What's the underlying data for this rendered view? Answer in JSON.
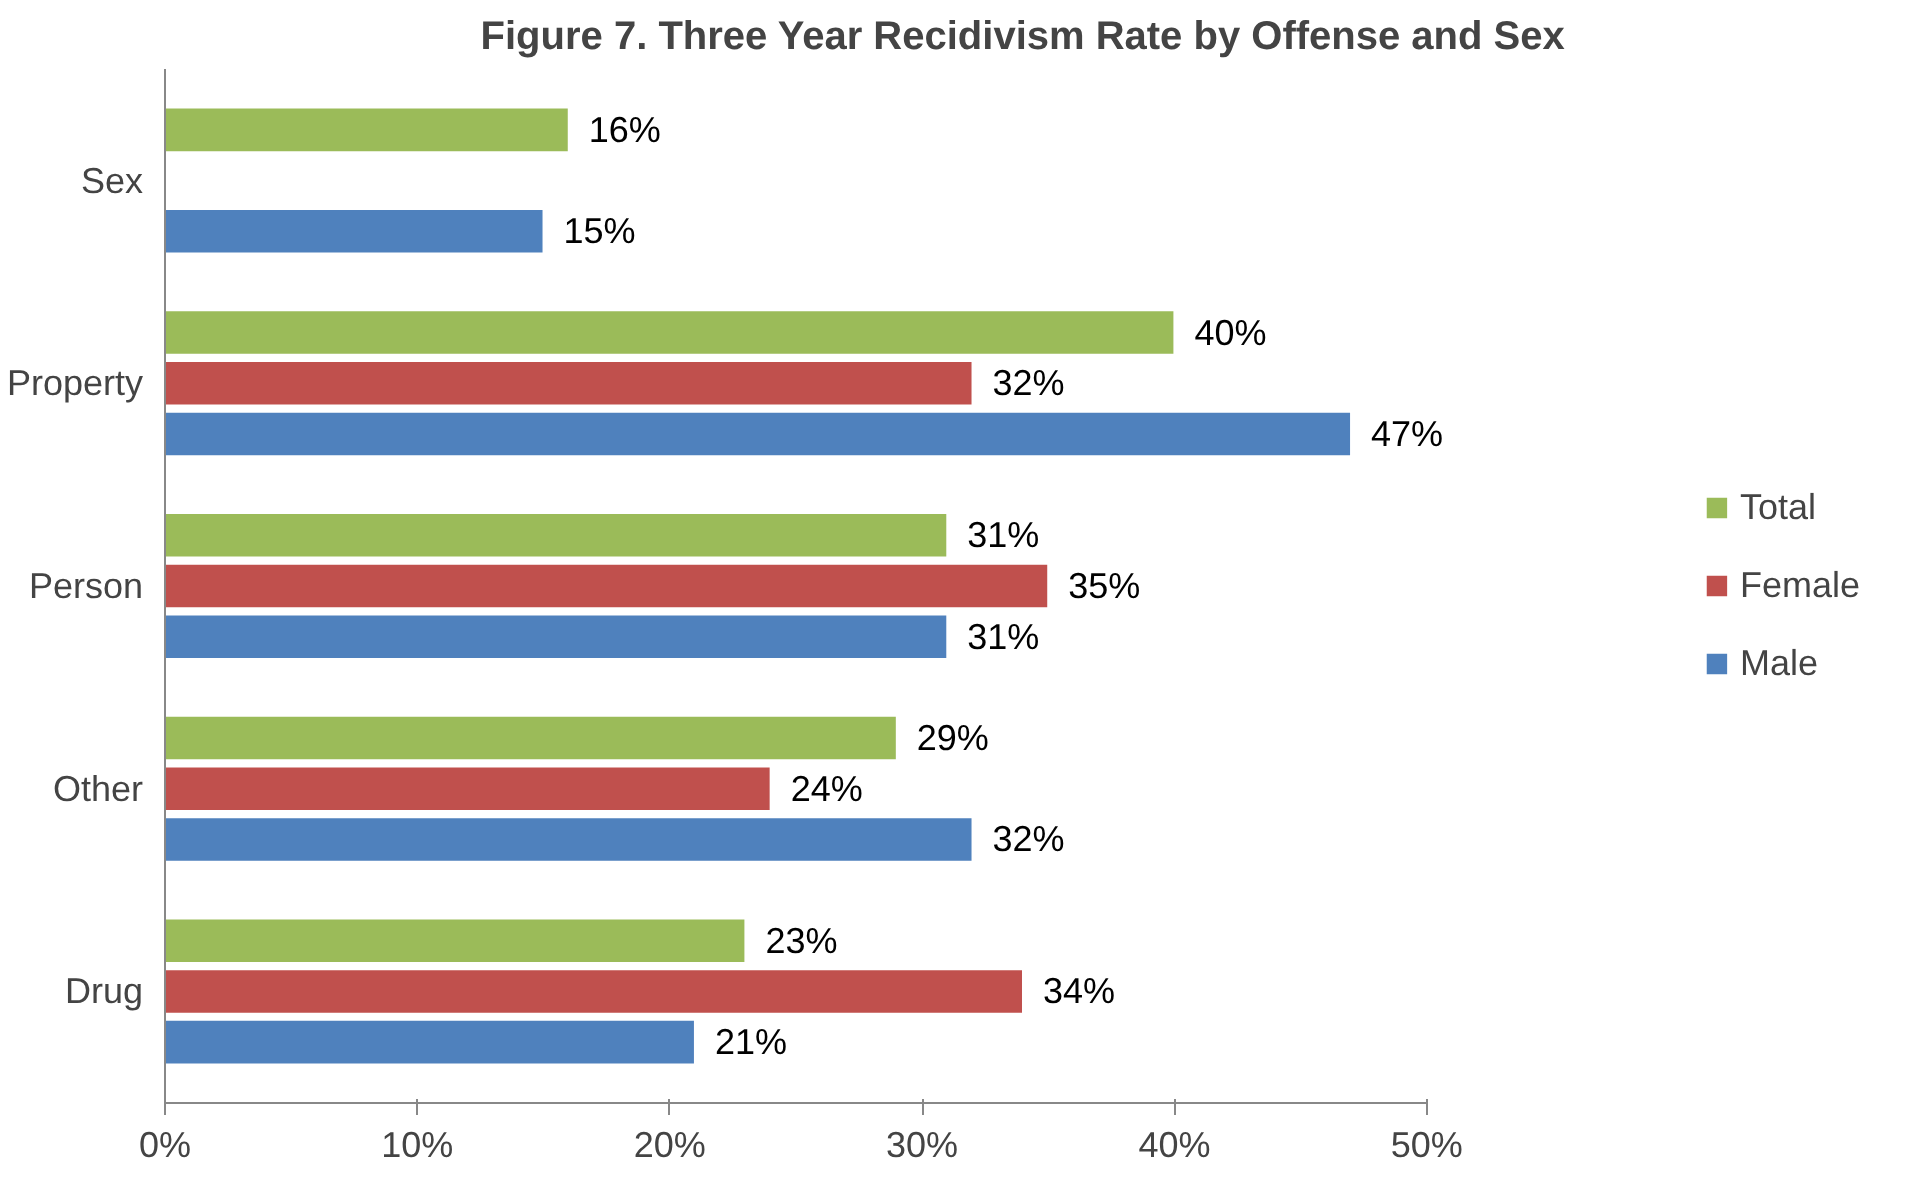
{
  "chart_data": {
    "type": "bar",
    "orientation": "horizontal",
    "title": "Figure 7. Three Year Recidivism Rate by Offense and Sex",
    "categories": [
      "Sex",
      "Property",
      "Person",
      "Other",
      "Drug"
    ],
    "series": [
      {
        "name": "Male",
        "color": "#4f81bd",
        "values": [
          15,
          47,
          31,
          32,
          21
        ],
        "value_labels": [
          "15%",
          "47%",
          "31%",
          "32%",
          "21%"
        ]
      },
      {
        "name": "Female",
        "color": "#c0504d",
        "values": [
          null,
          32,
          35,
          24,
          34
        ],
        "value_labels": [
          null,
          "32%",
          "35%",
          "24%",
          "34%"
        ]
      },
      {
        "name": "Total",
        "color": "#9bbb59",
        "values": [
          16,
          40,
          31,
          29,
          23
        ],
        "value_labels": [
          "16%",
          "40%",
          "31%",
          "29%",
          "23%"
        ]
      }
    ],
    "xlim": [
      0,
      50
    ],
    "xticks": [
      {
        "value": 0,
        "label": "0%"
      },
      {
        "value": 10,
        "label": "10%"
      },
      {
        "value": 20,
        "label": "20%"
      },
      {
        "value": 30,
        "label": "30%"
      },
      {
        "value": 40,
        "label": "40%"
      },
      {
        "value": 50,
        "label": "50%"
      }
    ],
    "grid": false,
    "legend": "right"
  }
}
